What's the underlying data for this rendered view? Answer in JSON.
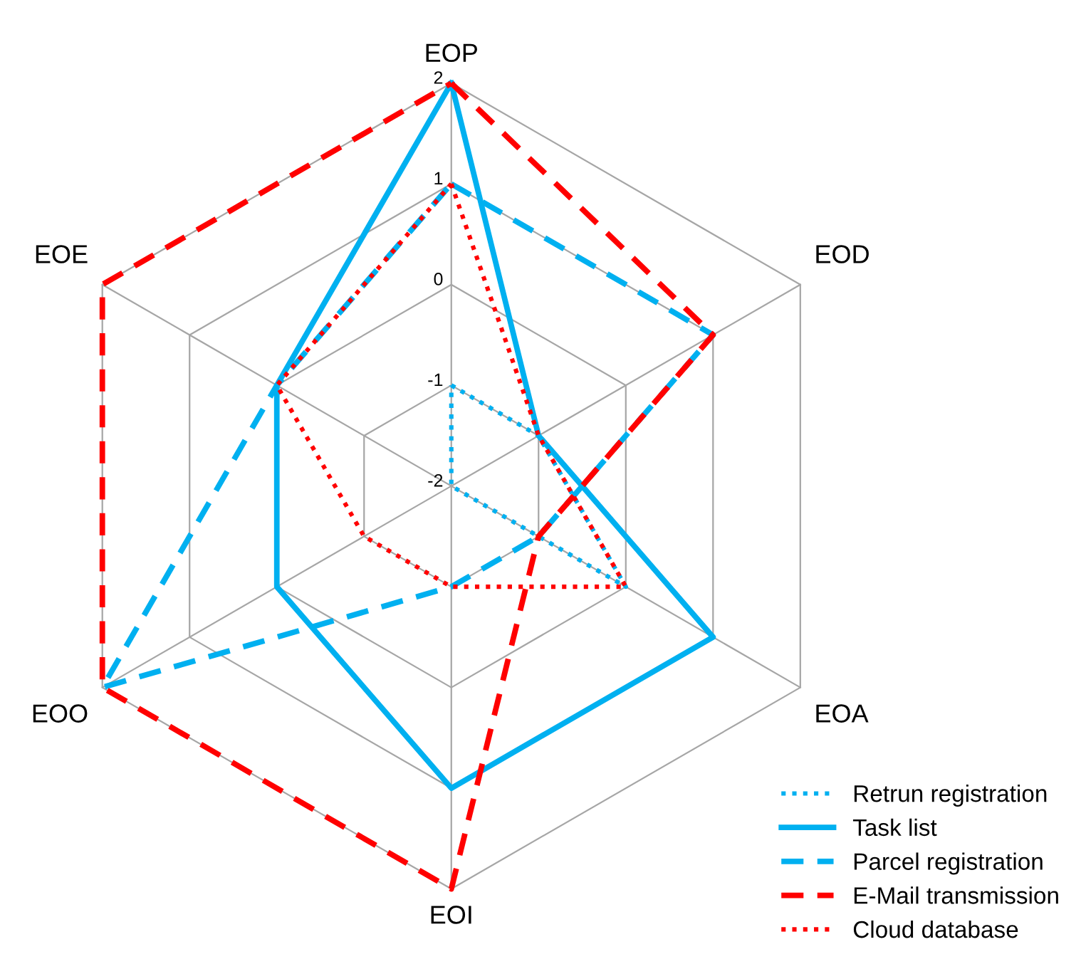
{
  "chart_data": {
    "type": "radar",
    "categories": [
      "EOP",
      "EOD",
      "EOA",
      "EOI",
      "EOO",
      "EOE"
    ],
    "ylim": [
      -2,
      2
    ],
    "yticks": [
      -2,
      -1,
      0,
      1,
      2
    ],
    "grid": true,
    "legend": "bottom right",
    "marker": "none",
    "series": [
      {
        "name": "Retrun registration",
        "color": "#00b0f0",
        "line_style": "dotted",
        "values": [
          -1,
          -1,
          0,
          -2,
          -2,
          -2
        ]
      },
      {
        "name": "Task list",
        "color": "#00b0f0",
        "line_style": "solid",
        "values": [
          2,
          -1,
          1,
          1,
          0,
          0
        ]
      },
      {
        "name": "Parcel registration",
        "color": "#00b0f0",
        "line_style": "dashed",
        "values": [
          1,
          1,
          -1,
          -1,
          2,
          0
        ]
      },
      {
        "name": "E-Mail transmission",
        "color": "#ff0000",
        "line_style": "dashed",
        "values": [
          2,
          1,
          -1,
          2,
          2,
          2
        ]
      },
      {
        "name": "Cloud database",
        "color": "#ff0000",
        "line_style": "dotted",
        "values": [
          1,
          -1,
          0,
          -1,
          -1,
          0
        ]
      }
    ]
  }
}
